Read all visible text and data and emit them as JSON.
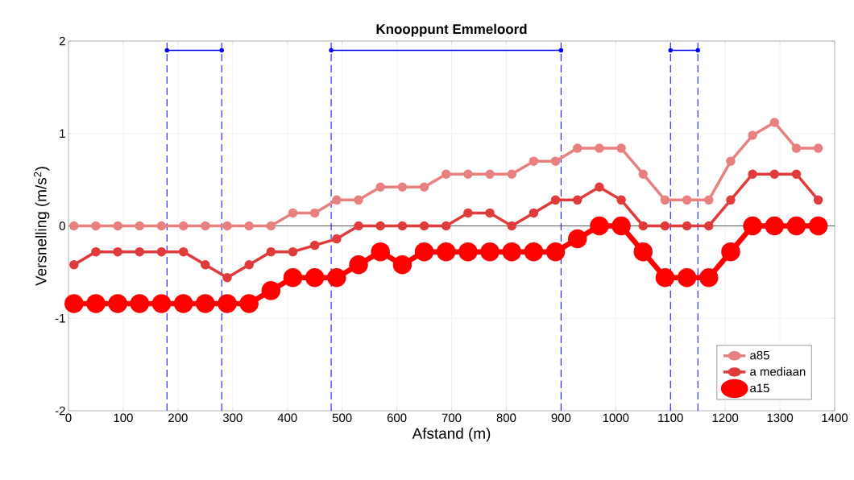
{
  "chart_data": {
    "type": "line",
    "title": "Knooppunt Emmeloord",
    "xlabel": "Afstand (m)",
    "ylabel": "Versnelling (m/s$^{2}$)",
    "x": [
      10,
      50,
      90,
      130,
      170,
      210,
      250,
      290,
      330,
      370,
      410,
      450,
      490,
      530,
      570,
      610,
      650,
      690,
      730,
      770,
      810,
      850,
      890,
      930,
      970,
      1010,
      1050,
      1090,
      1130,
      1170,
      1210,
      1250,
      1290,
      1330,
      1370
    ],
    "series": [
      {
        "name": "a85",
        "color": "#e88080",
        "values": [
          0,
          0,
          0,
          0,
          0,
          0,
          0,
          0,
          0,
          0,
          0.14,
          0.14,
          0.28,
          0.28,
          0.42,
          0.42,
          0.42,
          0.56,
          0.56,
          0.56,
          0.56,
          0.7,
          0.7,
          0.84,
          0.84,
          0.84,
          0.56,
          0.28,
          0.28,
          0.28,
          0.7,
          0.98,
          1.12,
          0.84,
          0.84
        ]
      },
      {
        "name": "a mediaan",
        "color": "#e03a3a",
        "values": [
          -0.42,
          -0.28,
          -0.28,
          -0.28,
          -0.28,
          -0.28,
          -0.42,
          -0.56,
          -0.42,
          -0.28,
          -0.28,
          -0.21,
          -0.14,
          0,
          0,
          0,
          0,
          0,
          0.14,
          0.14,
          0,
          0.14,
          0.28,
          0.28,
          0.42,
          0.28,
          0,
          0,
          0,
          0,
          0.28,
          0.56,
          0.56,
          0.56,
          0.28
        ]
      },
      {
        "name": "a15",
        "color": "#ff0000",
        "values": [
          -0.84,
          -0.84,
          -0.84,
          -0.84,
          -0.84,
          -0.84,
          -0.84,
          -0.84,
          -0.84,
          -0.7,
          -0.56,
          -0.56,
          -0.56,
          -0.42,
          -0.28,
          -0.42,
          -0.28,
          -0.28,
          -0.28,
          -0.28,
          -0.28,
          -0.28,
          -0.28,
          -0.14,
          0,
          0,
          -0.28,
          -0.56,
          -0.56,
          -0.56,
          -0.28,
          0,
          0,
          0,
          0
        ]
      },
      {
        "color": "#0000ff",
        "x": [
          180,
          280
        ],
        "values": [
          1.9,
          1.9
        ]
      },
      {
        "color": "#0000ff",
        "x": [
          480,
          900
        ],
        "values": [
          1.9,
          1.9
        ]
      },
      {
        "color": "#0000ff",
        "x": [
          1100,
          1150
        ],
        "values": [
          1.9,
          1.9
        ]
      }
    ],
    "ref_lines": [
      {
        "axis": "x",
        "value": 180,
        "color": "#0000ff",
        "line_style": "dashed"
      },
      {
        "axis": "x",
        "value": 280,
        "color": "#0000ff",
        "line_style": "dashed"
      },
      {
        "axis": "x",
        "value": 480,
        "color": "#0000ff",
        "line_style": "dashed"
      },
      {
        "axis": "x",
        "value": 900,
        "color": "#0000ff",
        "line_style": "dashed"
      },
      {
        "axis": "x",
        "value": 1100,
        "color": "#0000ff",
        "line_style": "dashed"
      },
      {
        "axis": "x",
        "value": 1150,
        "color": "#0000ff",
        "line_style": "dashed"
      }
    ],
    "xlim": [
      0,
      1400
    ],
    "xticks": [
      0,
      100,
      200,
      300,
      400,
      500,
      600,
      700,
      800,
      900,
      1000,
      1100,
      1200,
      1300,
      1400
    ],
    "ylim": [
      -2,
      2
    ],
    "yticks": [
      -2,
      -1,
      0,
      1,
      2
    ],
    "grid": true,
    "legend": "bottom right",
    "marker": "circle",
    "line_style": "solid"
  }
}
